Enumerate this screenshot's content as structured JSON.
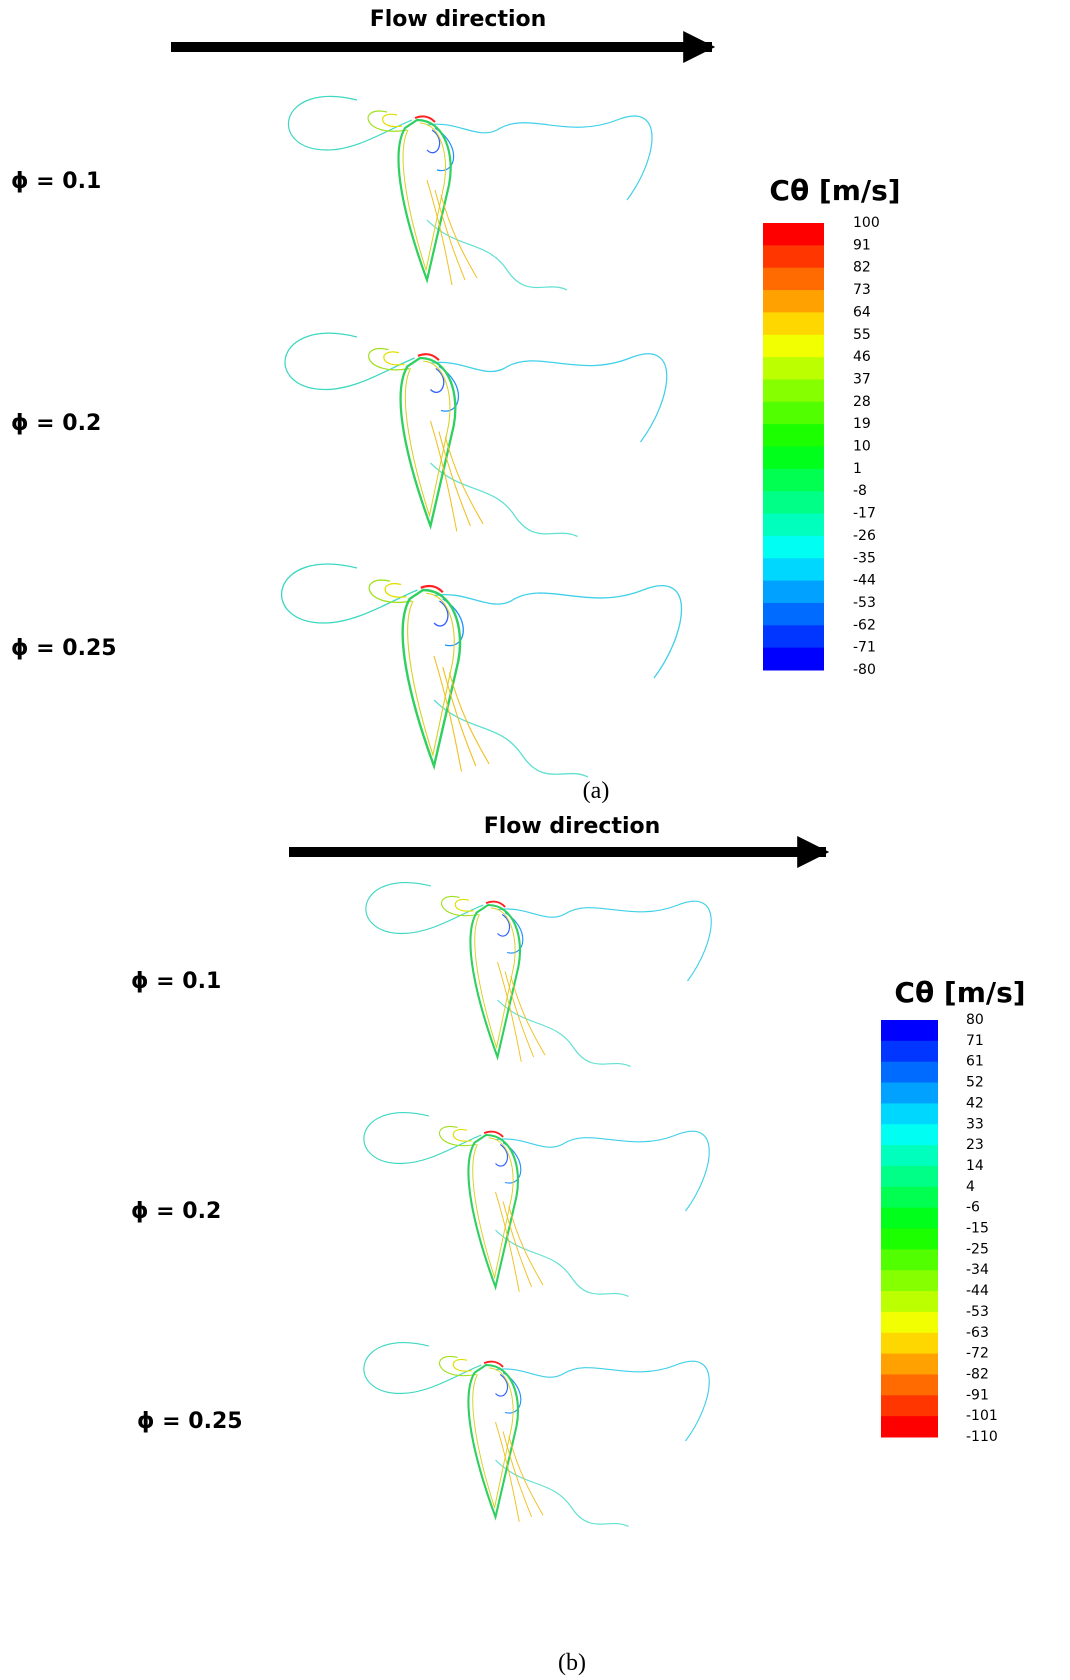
{
  "panels": [
    {
      "flow_label": "Flow direction",
      "phi_labels": [
        "ϕ = 0.1",
        "ϕ = 0.2",
        "ϕ = 0.25"
      ],
      "colorbar": {
        "title": "Cθ [m/s]",
        "levels": [
          100,
          91,
          82,
          73,
          64,
          55,
          46,
          37,
          28,
          19,
          10,
          1,
          -8,
          -17,
          -26,
          -35,
          -44,
          -53,
          -62,
          -71,
          -80
        ]
      },
      "caption": "(a)"
    },
    {
      "flow_label": "Flow direction",
      "phi_labels": [
        "ϕ = 0.1",
        "ϕ = 0.2",
        "ϕ = 0.25"
      ],
      "colorbar": {
        "title": "Cθ [m/s]",
        "levels": [
          80,
          71,
          61,
          52,
          42,
          33,
          23,
          14,
          4,
          -6,
          -15,
          -25,
          -34,
          -44,
          -53,
          -63,
          -72,
          -82,
          -91,
          -101,
          -110
        ]
      },
      "caption": "(b)"
    }
  ]
}
